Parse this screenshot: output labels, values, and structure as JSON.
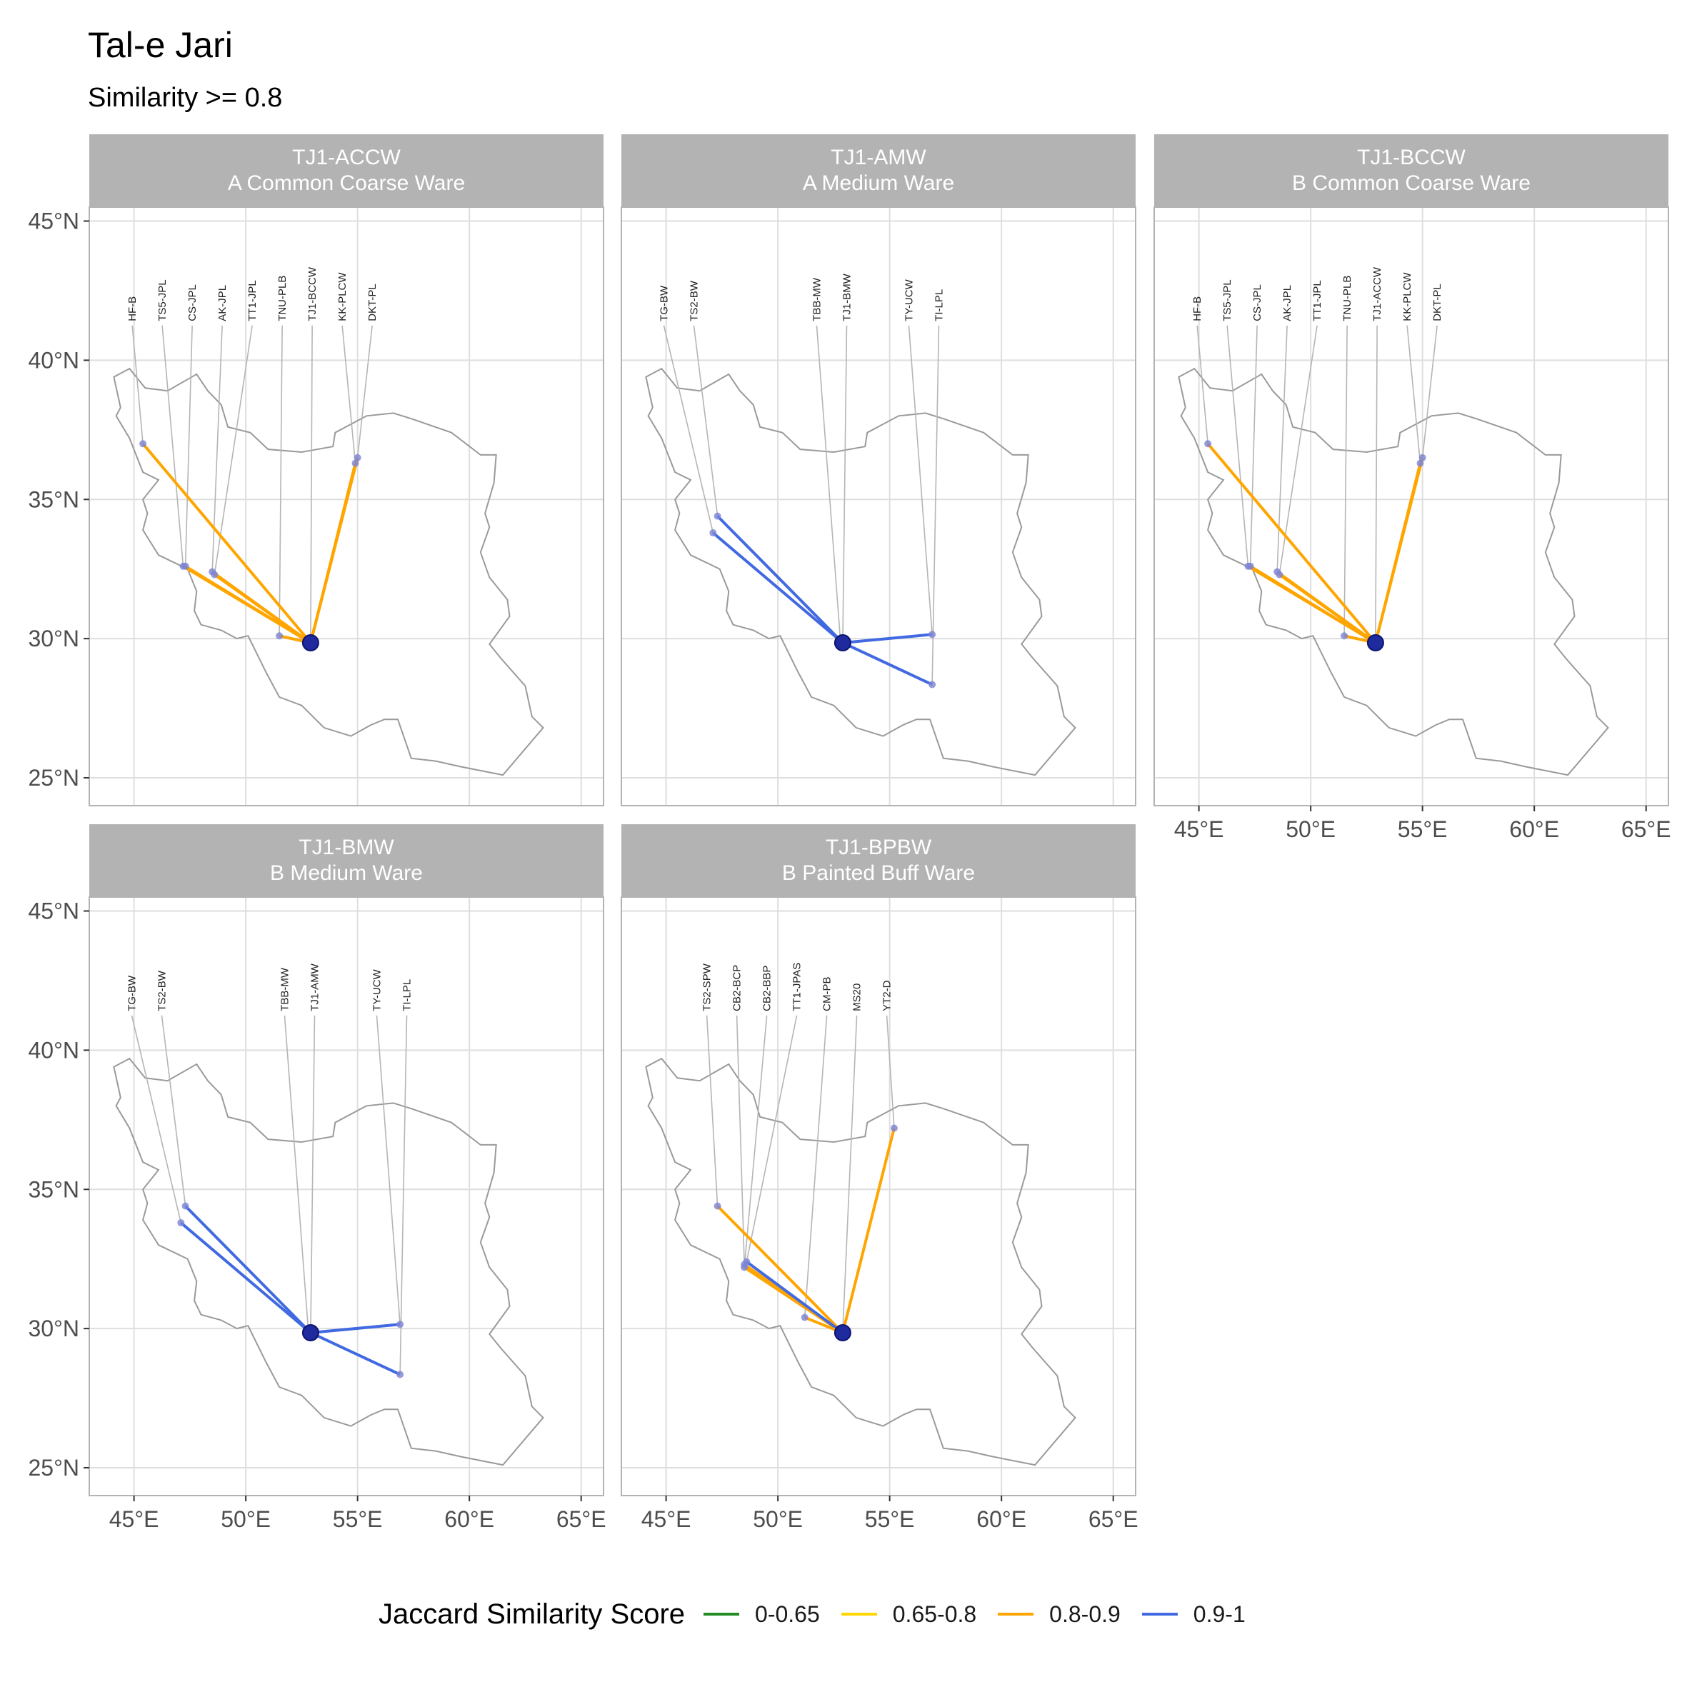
{
  "title": "Tal-e Jari",
  "subtitle": "Similarity >= 0.8",
  "axes": {
    "lon_ticks": [
      45,
      50,
      55,
      60,
      65
    ],
    "lat_ticks": [
      25,
      30,
      35,
      40,
      45
    ],
    "lon_labels": [
      "45°E",
      "50°E",
      "55°E",
      "60°E",
      "65°E"
    ],
    "lat_labels": [
      "25°N",
      "30°N",
      "35°N",
      "40°N",
      "45°N"
    ],
    "lon_range": [
      43,
      66
    ],
    "lat_range": [
      24,
      45.5
    ]
  },
  "legend": {
    "title": "Jaccard Similarity Score",
    "items": [
      {
        "label": "0-0.65",
        "color": "#228B22"
      },
      {
        "label": "0.65-0.8",
        "color": "#FFD700"
      },
      {
        "label": "0.8-0.9",
        "color": "#FFA500"
      },
      {
        "label": "0.9-1",
        "color": "#4169E1"
      }
    ]
  },
  "chart_data": [
    {
      "type": "map",
      "strip_line1": "TJ1-ACCW",
      "strip_line2": "A Common Coarse Ware",
      "origin": {
        "lon": 52.9,
        "lat": 29.85
      },
      "sites": [
        {
          "label": "HF-B",
          "lon": 45.4,
          "lat": 37.0,
          "score": "0.8-0.9"
        },
        {
          "label": "TS5-JPL",
          "lon": 47.2,
          "lat": 32.6,
          "score": "0.8-0.9"
        },
        {
          "label": "CS-JPL",
          "lon": 47.3,
          "lat": 32.6,
          "score": "0.8-0.9"
        },
        {
          "label": "AK-JPL",
          "lon": 48.5,
          "lat": 32.4,
          "score": "0.8-0.9"
        },
        {
          "label": "TT1-JPL",
          "lon": 48.6,
          "lat": 32.3,
          "score": "0.8-0.9"
        },
        {
          "label": "TNU-PLB",
          "lon": 51.5,
          "lat": 30.1,
          "score": "0.8-0.9"
        },
        {
          "label": "TJ1-BCCW",
          "lon": 52.9,
          "lat": 29.85,
          "score": "0.8-0.9"
        },
        {
          "label": "KK-PLCW",
          "lon": 54.9,
          "lat": 36.3,
          "score": "0.8-0.9"
        },
        {
          "label": "DKT-PL",
          "lon": 55.0,
          "lat": 36.5,
          "score": "0.8-0.9"
        }
      ]
    },
    {
      "type": "map",
      "strip_line1": "TJ1-AMW",
      "strip_line2": "A Medium Ware",
      "origin": {
        "lon": 52.9,
        "lat": 29.85
      },
      "sites": [
        {
          "label": "TG-BW",
          "lon": 47.1,
          "lat": 33.8,
          "score": "0.9-1"
        },
        {
          "label": "TS2-BW",
          "lon": 47.3,
          "lat": 34.4,
          "score": "0.9-1"
        },
        {
          "label": "TBB-MW",
          "lon": 52.8,
          "lat": 29.9,
          "score": "0.9-1"
        },
        {
          "label": "TJ1-BMW",
          "lon": 52.9,
          "lat": 29.85,
          "score": "0.9-1"
        },
        {
          "label": "TY-UCW",
          "lon": 56.9,
          "lat": 30.15,
          "score": "0.9-1"
        },
        {
          "label": "TI-LPL",
          "lon": 56.9,
          "lat": 28.35,
          "score": "0.9-1"
        }
      ]
    },
    {
      "type": "map",
      "strip_line1": "TJ1-BCCW",
      "strip_line2": "B Common Coarse Ware",
      "origin": {
        "lon": 52.9,
        "lat": 29.85
      },
      "sites": [
        {
          "label": "HF-B",
          "lon": 45.4,
          "lat": 37.0,
          "score": "0.8-0.9"
        },
        {
          "label": "TS5-JPL",
          "lon": 47.2,
          "lat": 32.6,
          "score": "0.8-0.9"
        },
        {
          "label": "CS-JPL",
          "lon": 47.3,
          "lat": 32.6,
          "score": "0.8-0.9"
        },
        {
          "label": "AK-JPL",
          "lon": 48.5,
          "lat": 32.4,
          "score": "0.8-0.9"
        },
        {
          "label": "TT1-JPL",
          "lon": 48.6,
          "lat": 32.3,
          "score": "0.8-0.9"
        },
        {
          "label": "TNU-PLB",
          "lon": 51.5,
          "lat": 30.1,
          "score": "0.8-0.9"
        },
        {
          "label": "TJ1-ACCW",
          "lon": 52.9,
          "lat": 29.85,
          "score": "0.8-0.9"
        },
        {
          "label": "KK-PLCW",
          "lon": 54.9,
          "lat": 36.3,
          "score": "0.8-0.9"
        },
        {
          "label": "DKT-PL",
          "lon": 55.0,
          "lat": 36.5,
          "score": "0.8-0.9"
        }
      ]
    },
    {
      "type": "map",
      "strip_line1": "TJ1-BMW",
      "strip_line2": "B Medium Ware",
      "origin": {
        "lon": 52.9,
        "lat": 29.85
      },
      "sites": [
        {
          "label": "TG-BW",
          "lon": 47.1,
          "lat": 33.8,
          "score": "0.9-1"
        },
        {
          "label": "TS2-BW",
          "lon": 47.3,
          "lat": 34.4,
          "score": "0.9-1"
        },
        {
          "label": "TBB-MW",
          "lon": 52.8,
          "lat": 29.9,
          "score": "0.9-1"
        },
        {
          "label": "TJ1-AMW",
          "lon": 52.9,
          "lat": 29.85,
          "score": "0.9-1"
        },
        {
          "label": "TY-UCW",
          "lon": 56.9,
          "lat": 30.15,
          "score": "0.9-1"
        },
        {
          "label": "TI-LPL",
          "lon": 56.9,
          "lat": 28.35,
          "score": "0.9-1"
        }
      ]
    },
    {
      "type": "map",
      "strip_line1": "TJ1-BPBW",
      "strip_line2": "B Painted Buff Ware",
      "origin": {
        "lon": 52.9,
        "lat": 29.85
      },
      "sites": [
        {
          "label": "TS2-SPW",
          "lon": 47.3,
          "lat": 34.4,
          "score": "0.8-0.9"
        },
        {
          "label": "CB2-BCP",
          "lon": 48.5,
          "lat": 32.3,
          "score": "0.8-0.9"
        },
        {
          "label": "CB2-BBP",
          "lon": 48.5,
          "lat": 32.2,
          "score": "0.8-0.9"
        },
        {
          "label": "TT1-JPAS",
          "lon": 48.6,
          "lat": 32.4,
          "score": "0.9-1"
        },
        {
          "label": "CM-PB",
          "lon": 51.2,
          "lat": 30.4,
          "score": "0.8-0.9"
        },
        {
          "label": "MS20",
          "lon": 52.9,
          "lat": 29.9,
          "score": "0.8-0.9"
        },
        {
          "label": "YT2-D",
          "lon": 55.2,
          "lat": 37.2,
          "score": "0.8-0.9"
        }
      ]
    }
  ]
}
